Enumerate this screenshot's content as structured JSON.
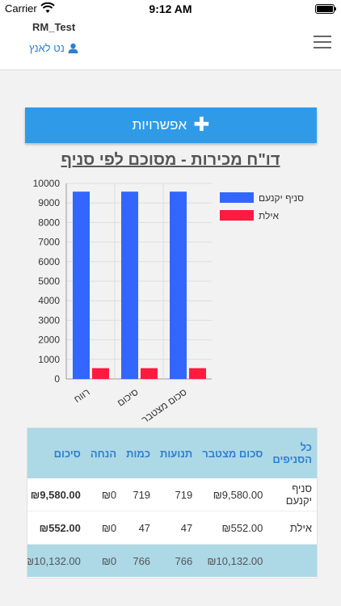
{
  "status": {
    "carrier": "Carrier",
    "time": "9:12 AM"
  },
  "header": {
    "title": "RM_Test",
    "user": "נט לאנץ"
  },
  "options_label": "אפשרויות",
  "report_title": "דו\"ח מכירות - מסוכם לפי סניף",
  "chart_data": {
    "type": "bar",
    "categories": [
      "רווח",
      "סיכום",
      "סכום מצטבר"
    ],
    "series": [
      {
        "name": "סניף יקנעם",
        "values": [
          9580,
          9580,
          9580
        ],
        "color": "#3366ff"
      },
      {
        "name": "אילת",
        "values": [
          552,
          552,
          552
        ],
        "color": "#ff1a40"
      }
    ],
    "yticks": [
      "0",
      "1000",
      "2000",
      "3000",
      "4000",
      "5000",
      "6000",
      "7000",
      "8000",
      "9000",
      "10000"
    ],
    "ylim": [
      0,
      10000
    ],
    "legend": "right"
  },
  "table": {
    "headers": [
      "כל הסניפים",
      "סכום מצטבר",
      "תנועות",
      "כמות",
      "הנחה",
      "סיכום"
    ],
    "rows": [
      [
        "סניף יקנעם",
        "₪9,580.00",
        "719",
        "719",
        "₪0",
        "₪9,580.00"
      ],
      [
        "אילת",
        "₪552.00",
        "47",
        "47",
        "₪0",
        "₪552.00"
      ]
    ],
    "total": [
      "",
      "₪10,132.00",
      "766",
      "766",
      "₪0",
      "₪10,132.00"
    ]
  }
}
